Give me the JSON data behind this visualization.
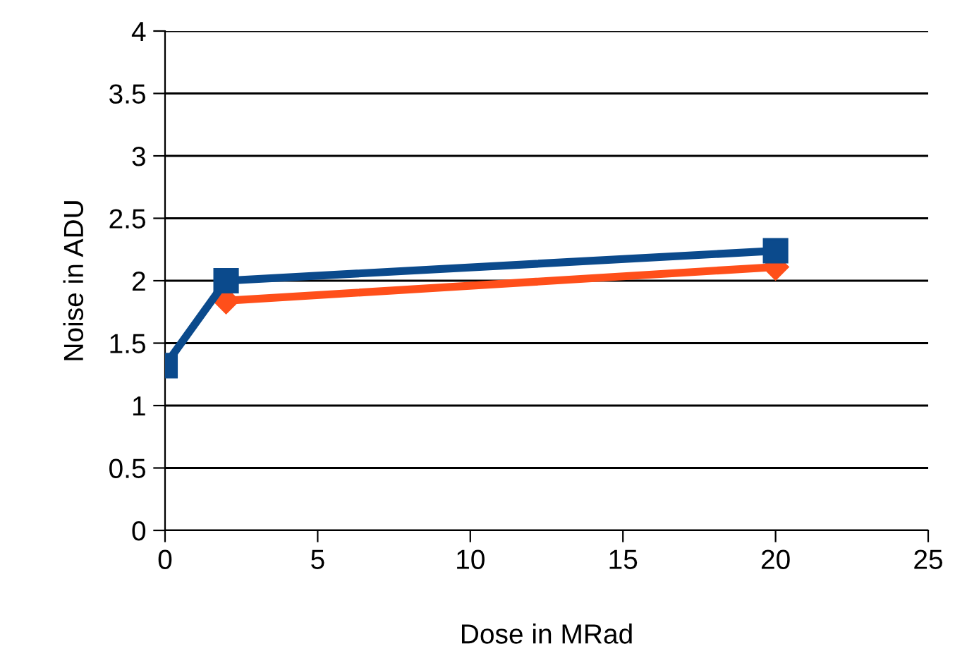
{
  "chart_data": {
    "type": "line",
    "xlabel": "Dose in MRad",
    "ylabel": "Noise in ADU",
    "x": [
      0,
      2,
      20
    ],
    "series": [
      {
        "color": "#ff4f1a",
        "values": [
          null,
          1.84,
          2.11
        ],
        "marker": "diamond"
      },
      {
        "color": "#0b4a8c",
        "values": [
          1.32,
          2.0,
          2.24
        ],
        "marker": "square"
      }
    ],
    "xlim": [
      0,
      25
    ],
    "xticks": [
      0,
      5,
      10,
      15,
      20,
      25
    ],
    "ylim": [
      0,
      4
    ],
    "yticks": [
      0,
      0.5,
      1,
      1.5,
      2,
      2.5,
      3,
      3.5,
      4
    ],
    "grid": "y",
    "line_style": "solid"
  }
}
